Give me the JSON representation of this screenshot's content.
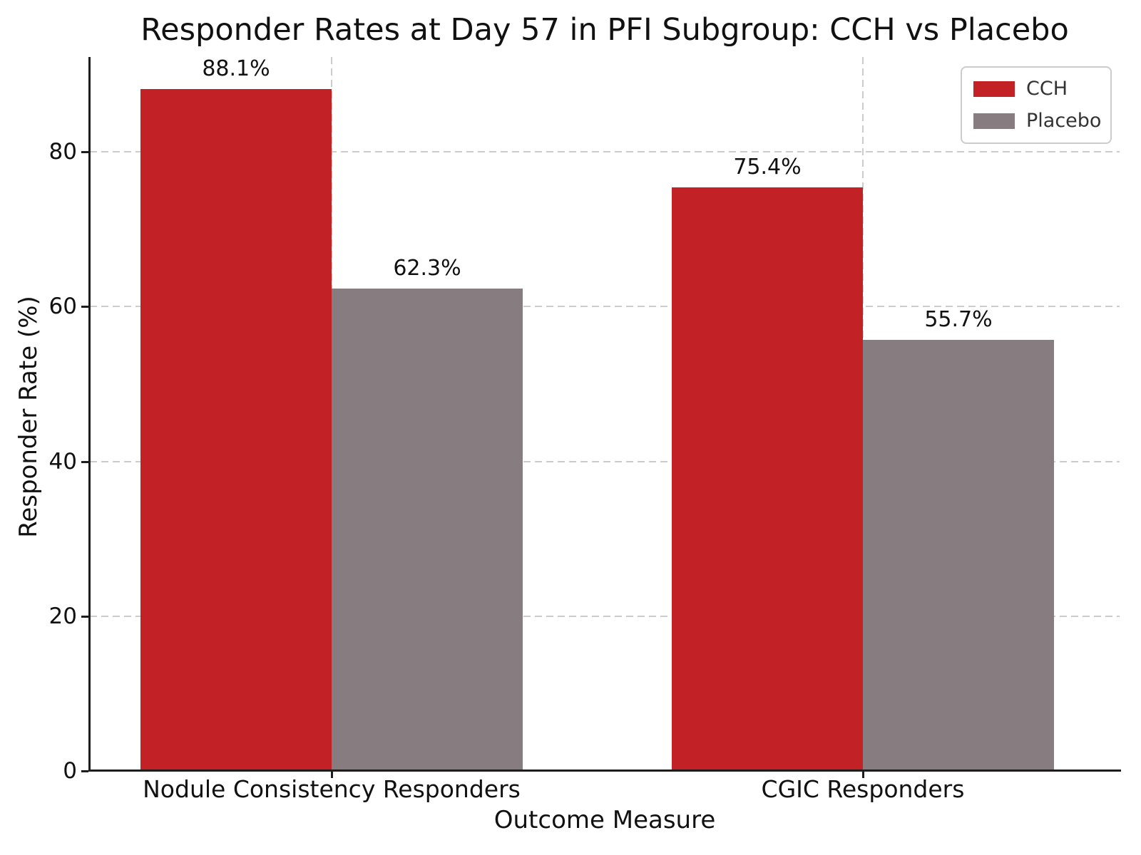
{
  "chart_data": {
    "type": "bar",
    "title": "Responder Rates at Day 57 in PFI Subgroup: CCH vs Placebo",
    "xlabel": "Outcome Measure",
    "ylabel": "Responder Rate (%)",
    "categories": [
      "Nodule Consistency Responders",
      "CGIC Responders"
    ],
    "series": [
      {
        "name": "CCH",
        "color": "#c22126",
        "values": [
          88.1,
          75.4
        ]
      },
      {
        "name": "Placebo",
        "color": "#877c80",
        "values": [
          62.3,
          55.7
        ]
      }
    ],
    "value_suffix": "%",
    "value_labels": [
      [
        "88.1%",
        "75.4%"
      ],
      [
        "62.3%",
        "55.7%"
      ]
    ],
    "ylim": [
      0,
      92.2
    ],
    "yticks": [
      0,
      20,
      40,
      60,
      80
    ],
    "grid": "dashed gridlines on both axes, drawn below bars",
    "legend_position": "upper right",
    "colors": {
      "cch_red": "#c22126",
      "placebo_gray": "#877c80",
      "gridline": "#cccccc",
      "spine": "#1d1d1d",
      "text": "#111111",
      "legend_border": "#cccccc"
    }
  }
}
